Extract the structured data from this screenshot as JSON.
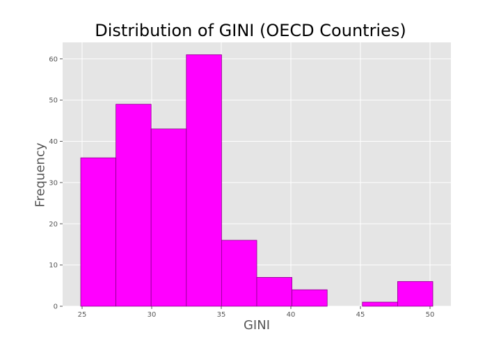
{
  "chart_data": {
    "type": "bar",
    "title": "Distribution of GINI (OECD Countries)",
    "xlabel": "GINI",
    "ylabel": "Frequency",
    "bins": [
      {
        "start": 24.9,
        "end": 27.43,
        "count": 36
      },
      {
        "start": 27.43,
        "end": 29.96,
        "count": 49
      },
      {
        "start": 29.96,
        "end": 32.49,
        "count": 43
      },
      {
        "start": 32.49,
        "end": 35.02,
        "count": 61
      },
      {
        "start": 35.02,
        "end": 37.55,
        "count": 16
      },
      {
        "start": 37.55,
        "end": 40.08,
        "count": 7
      },
      {
        "start": 40.08,
        "end": 42.61,
        "count": 4
      },
      {
        "start": 42.61,
        "end": 45.14,
        "count": 0
      },
      {
        "start": 45.14,
        "end": 47.67,
        "count": 1
      },
      {
        "start": 47.67,
        "end": 50.2,
        "count": 6
      }
    ],
    "xlim": [
      23.6,
      51.5
    ],
    "ylim": [
      0,
      64
    ],
    "xticks": [
      25,
      30,
      35,
      40,
      45,
      50
    ],
    "yticks": [
      0,
      10,
      20,
      30,
      40,
      50,
      60
    ],
    "bar_color": "#ff00ff",
    "edge_color": "#8b008b",
    "background_color": "#e5e5e5",
    "grid": true
  }
}
